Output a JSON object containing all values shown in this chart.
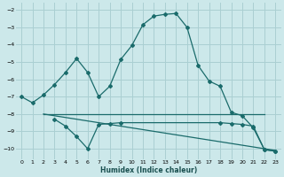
{
  "background_color": "#cce8ea",
  "grid_color": "#aacfd2",
  "line_color": "#1a6b6b",
  "xlabel": "Humidex (Indice chaleur)",
  "ylim": [
    -10.6,
    -1.6
  ],
  "xlim": [
    -0.5,
    23.5
  ],
  "yticks": [
    -10,
    -9,
    -8,
    -7,
    -6,
    -5,
    -4,
    -3,
    -2
  ],
  "xticks": [
    0,
    1,
    2,
    3,
    4,
    5,
    6,
    7,
    8,
    9,
    10,
    11,
    12,
    13,
    14,
    15,
    16,
    17,
    18,
    19,
    20,
    21,
    22,
    23
  ],
  "line1_x": [
    0,
    1,
    2,
    3,
    4,
    5,
    6,
    7,
    8,
    9,
    10,
    11,
    12,
    13,
    14,
    15,
    16,
    17,
    18,
    19,
    20,
    21,
    22,
    23
  ],
  "line1_y": [
    -7.0,
    -7.35,
    -6.9,
    -6.3,
    -5.6,
    -4.8,
    -5.6,
    -7.0,
    -6.4,
    -4.85,
    -4.05,
    -2.85,
    -2.35,
    -2.25,
    -2.2,
    -3.0,
    -5.2,
    -6.1,
    -6.4,
    -7.9,
    -8.1,
    -8.8,
    -10.05,
    -10.15
  ],
  "line2_x": [
    2,
    22
  ],
  "line2_y": [
    -8.0,
    -8.0
  ],
  "line3_x": [
    2,
    23
  ],
  "line3_y": [
    -8.0,
    -10.1
  ],
  "line4_x": [
    3,
    4,
    5,
    6,
    7,
    8,
    9,
    18,
    19,
    20,
    21,
    22,
    23
  ],
  "line4_y": [
    -8.3,
    -8.7,
    -9.3,
    -10.0,
    -8.6,
    -8.55,
    -8.5,
    -8.5,
    -8.55,
    -8.6,
    -8.7,
    -10.05,
    -10.15
  ]
}
